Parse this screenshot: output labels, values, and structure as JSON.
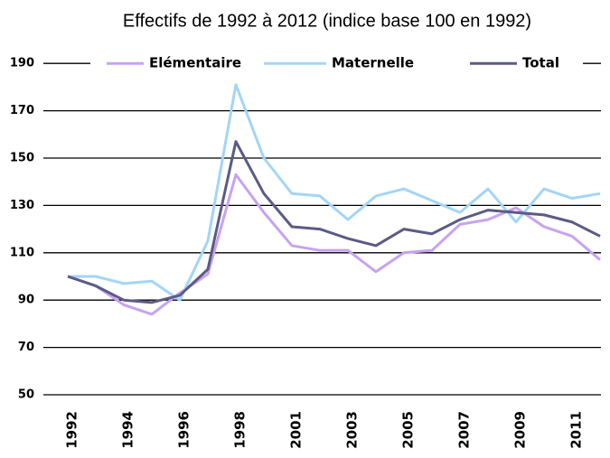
{
  "chart_data": {
    "type": "line",
    "title": "Effectifs de 1992 à 2012 (indice base 100 en 1992)",
    "categories": [
      "1992",
      null,
      "1994",
      null,
      "1996",
      null,
      "1998",
      null,
      "2001",
      null,
      "2003",
      null,
      "2005",
      null,
      "2007",
      null,
      "2009",
      null,
      "2011",
      null
    ],
    "series": [
      {
        "name": "Elémentaire",
        "color": "#c8a2f0",
        "values": [
          100,
          96,
          88,
          84,
          93,
          101,
          143,
          127,
          113,
          111,
          111,
          102,
          110,
          111,
          122,
          124,
          129,
          121,
          117,
          107
        ]
      },
      {
        "name": "Maternelle",
        "color": "#a3d5f7",
        "values": [
          100,
          100,
          97,
          98,
          90,
          115,
          181,
          150,
          135,
          134,
          124,
          134,
          137,
          132,
          127,
          137,
          123,
          137,
          133,
          135
        ]
      },
      {
        "name": "Total",
        "color": "#5b5b86",
        "values": [
          100,
          96,
          90,
          89,
          92,
          103,
          157,
          135,
          121,
          120,
          116,
          113,
          120,
          118,
          124,
          128,
          127,
          126,
          123,
          117
        ]
      }
    ],
    "ylim": [
      50,
      200
    ],
    "yticks": [
      50,
      70,
      90,
      110,
      130,
      150,
      170,
      190
    ],
    "grid": true,
    "legend": "top"
  }
}
